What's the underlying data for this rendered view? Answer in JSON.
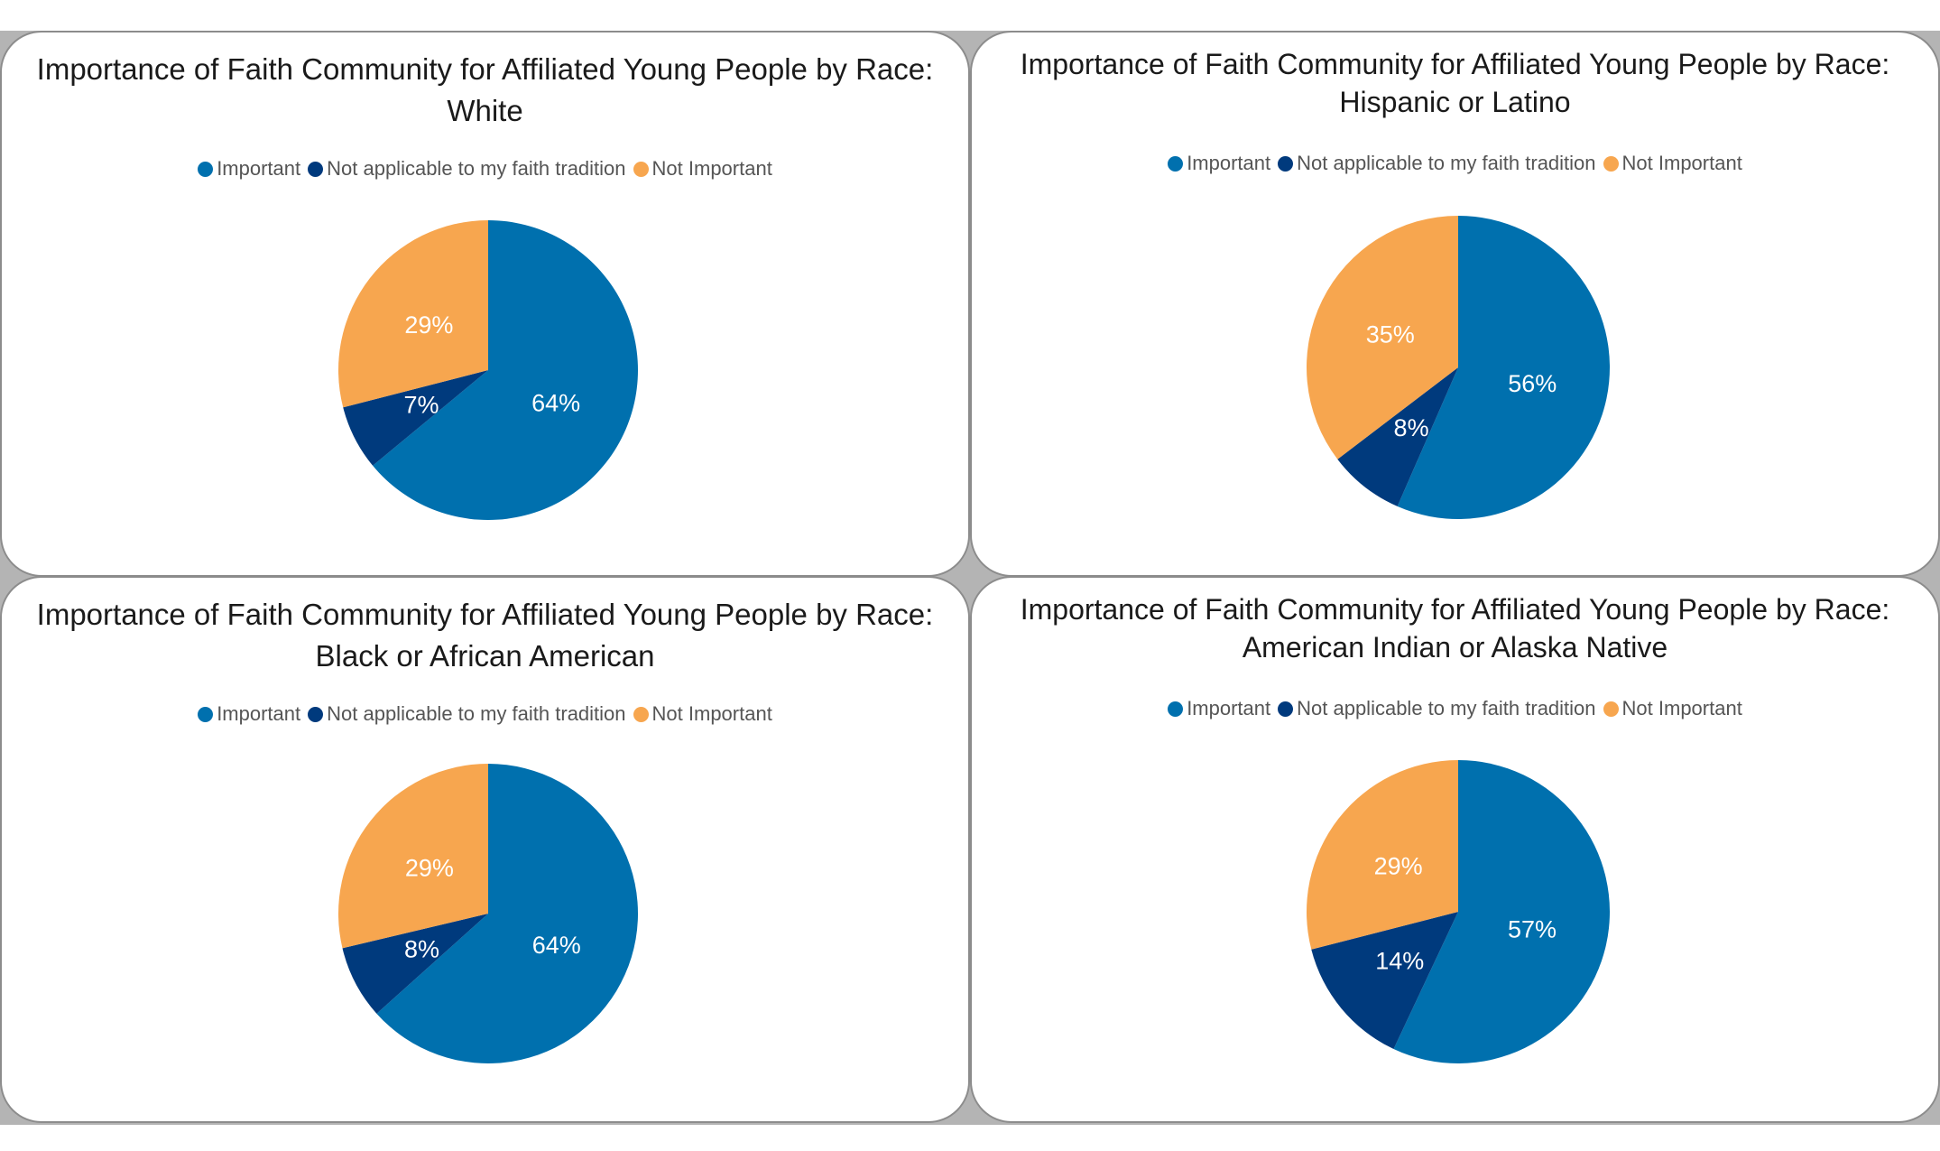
{
  "legend": {
    "important": "Important",
    "not_applicable": "Not applicable to my faith tradition",
    "not_important": "Not Important"
  },
  "colors": {
    "important": "#0070ae",
    "not_applicable": "#003a7d",
    "not_important": "#f7a64f"
  },
  "chart_data": [
    {
      "type": "pie",
      "title_line1": "Importance of Faith Community for Affiliated Young People by Race:",
      "title_line2": "White",
      "categories": [
        "Important",
        "Not applicable to my faith tradition",
        "Not Important"
      ],
      "values": [
        64,
        7,
        29
      ],
      "labels": [
        "64%",
        "7%",
        "29%"
      ]
    },
    {
      "type": "pie",
      "title_line1": "Importance of Faith Community for Affiliated Young People by Race:",
      "title_line2": "Hispanic or Latino",
      "categories": [
        "Important",
        "Not applicable to my faith tradition",
        "Not Important"
      ],
      "values": [
        56,
        8,
        35
      ],
      "labels": [
        "56%",
        "8%",
        "35%"
      ]
    },
    {
      "type": "pie",
      "title_line1": "Importance of Faith Community for Affiliated Young People by Race:",
      "title_line2": "Black or African American",
      "categories": [
        "Important",
        "Not applicable to my faith tradition",
        "Not Important"
      ],
      "values": [
        64,
        8,
        29
      ],
      "labels": [
        "64%",
        "8%",
        "29%"
      ]
    },
    {
      "type": "pie",
      "title_line1": "Importance of Faith Community for Affiliated Young People by Race:",
      "title_line2": "American Indian or Alaska Native",
      "categories": [
        "Important",
        "Not applicable to my faith tradition",
        "Not Important"
      ],
      "values": [
        57,
        14,
        29
      ],
      "labels": [
        "57%",
        "14%",
        "29%"
      ]
    }
  ]
}
